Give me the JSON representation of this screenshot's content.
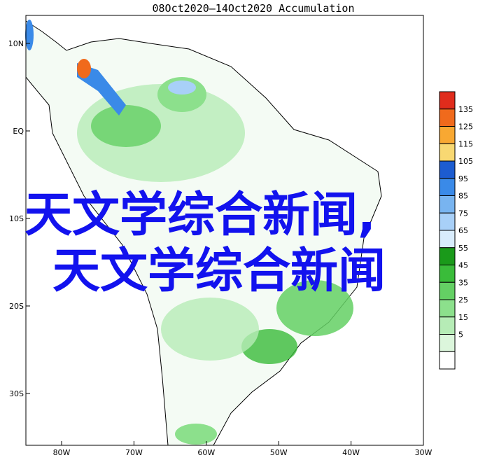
{
  "title": "08Oct2020—14Oct2020 Accumulation",
  "lon_labels": [
    "80W",
    "70W",
    "60W",
    "50W",
    "40W",
    "30W"
  ],
  "lat_labels": [
    "10N",
    "EQ",
    "10S",
    "20S",
    "30S"
  ],
  "colorbar": {
    "levels": [
      135,
      125,
      115,
      105,
      95,
      85,
      75,
      65,
      55,
      45,
      35,
      25,
      15,
      5
    ],
    "colors": [
      "#e02c1c",
      "#f06a1c",
      "#f8a832",
      "#f8d872",
      "#1c5cd0",
      "#3a8ae8",
      "#78b4f0",
      "#a8d0f8",
      "#d8ecfc",
      "#1a9a1a",
      "#3abc3a",
      "#64d064",
      "#8ce08c",
      "#b6ecb6",
      "#dcf6dc",
      "#ffffff"
    ]
  },
  "overlay": [
    "天文学综合新闻,",
    "天文学综合新闻"
  ]
}
